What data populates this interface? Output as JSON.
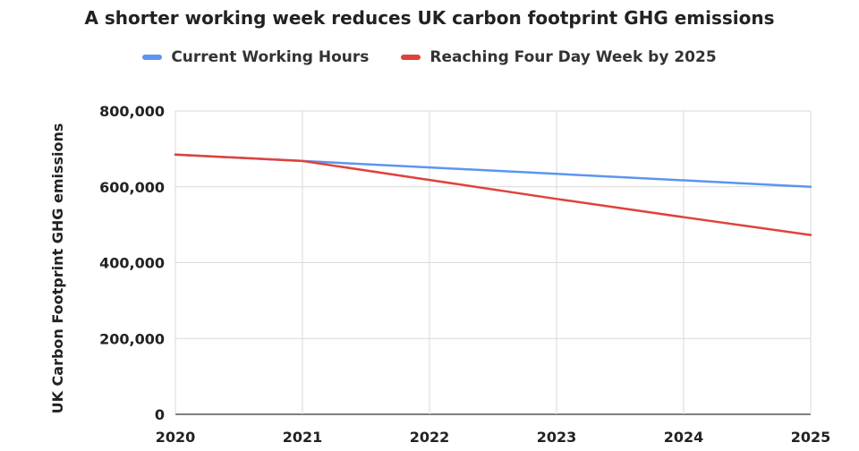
{
  "chart_data": {
    "type": "line",
    "title": "A shorter working week reduces UK carbon footprint GHG emissions",
    "xlabel": "",
    "ylabel": "UK Carbon Footprint GHG emissions",
    "x": [
      "2020",
      "2021",
      "2022",
      "2023",
      "2024",
      "2025"
    ],
    "ylim": [
      0,
      800000
    ],
    "yticks": [
      0,
      200000,
      400000,
      600000,
      800000
    ],
    "ytick_labels": [
      "0",
      "200,000",
      "400,000",
      "600,000",
      "800,000"
    ],
    "grid": true,
    "legend_position": "top",
    "series": [
      {
        "name": "Current Working Hours",
        "color": "#5b95f0",
        "values": [
          685000,
          668000,
          651000,
          634000,
          617000,
          600000
        ]
      },
      {
        "name": "Reaching Four Day Week by 2025",
        "color": "#e0423a",
        "values": [
          685000,
          668000,
          618000,
          568000,
          520000,
          473000
        ]
      }
    ]
  }
}
